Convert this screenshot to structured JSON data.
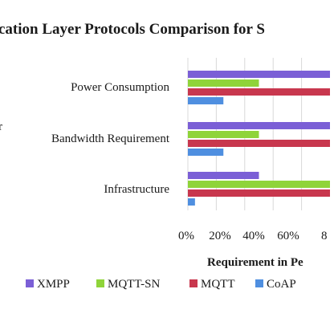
{
  "chart_data": {
    "type": "bar",
    "orientation": "horizontal",
    "title": "cation Layer Protocols Comparison for S",
    "left_fragment": "r",
    "xlabel": "Requirement in Pe",
    "xlim": [
      0,
      100
    ],
    "x_tick_labels": [
      "0%",
      "20%",
      "40%",
      "60%",
      "8"
    ],
    "grid": true,
    "legend_position": "bottom",
    "categories": [
      "Power Consumption",
      "Bandwidth Requirement",
      "Infrastructure"
    ],
    "series": [
      {
        "name": "XMPP",
        "color": "#7b5fd6",
        "values": [
          100,
          100,
          50
        ]
      },
      {
        "name": "MQTT-SN",
        "color": "#8fd43a",
        "values": [
          50,
          50,
          100
        ]
      },
      {
        "name": "MQTT",
        "color": "#c8374e",
        "values": [
          100,
          100,
          100
        ]
      },
      {
        "name": "CoAP",
        "color": "#4f8fe0",
        "values": [
          25,
          25,
          5
        ]
      }
    ]
  }
}
